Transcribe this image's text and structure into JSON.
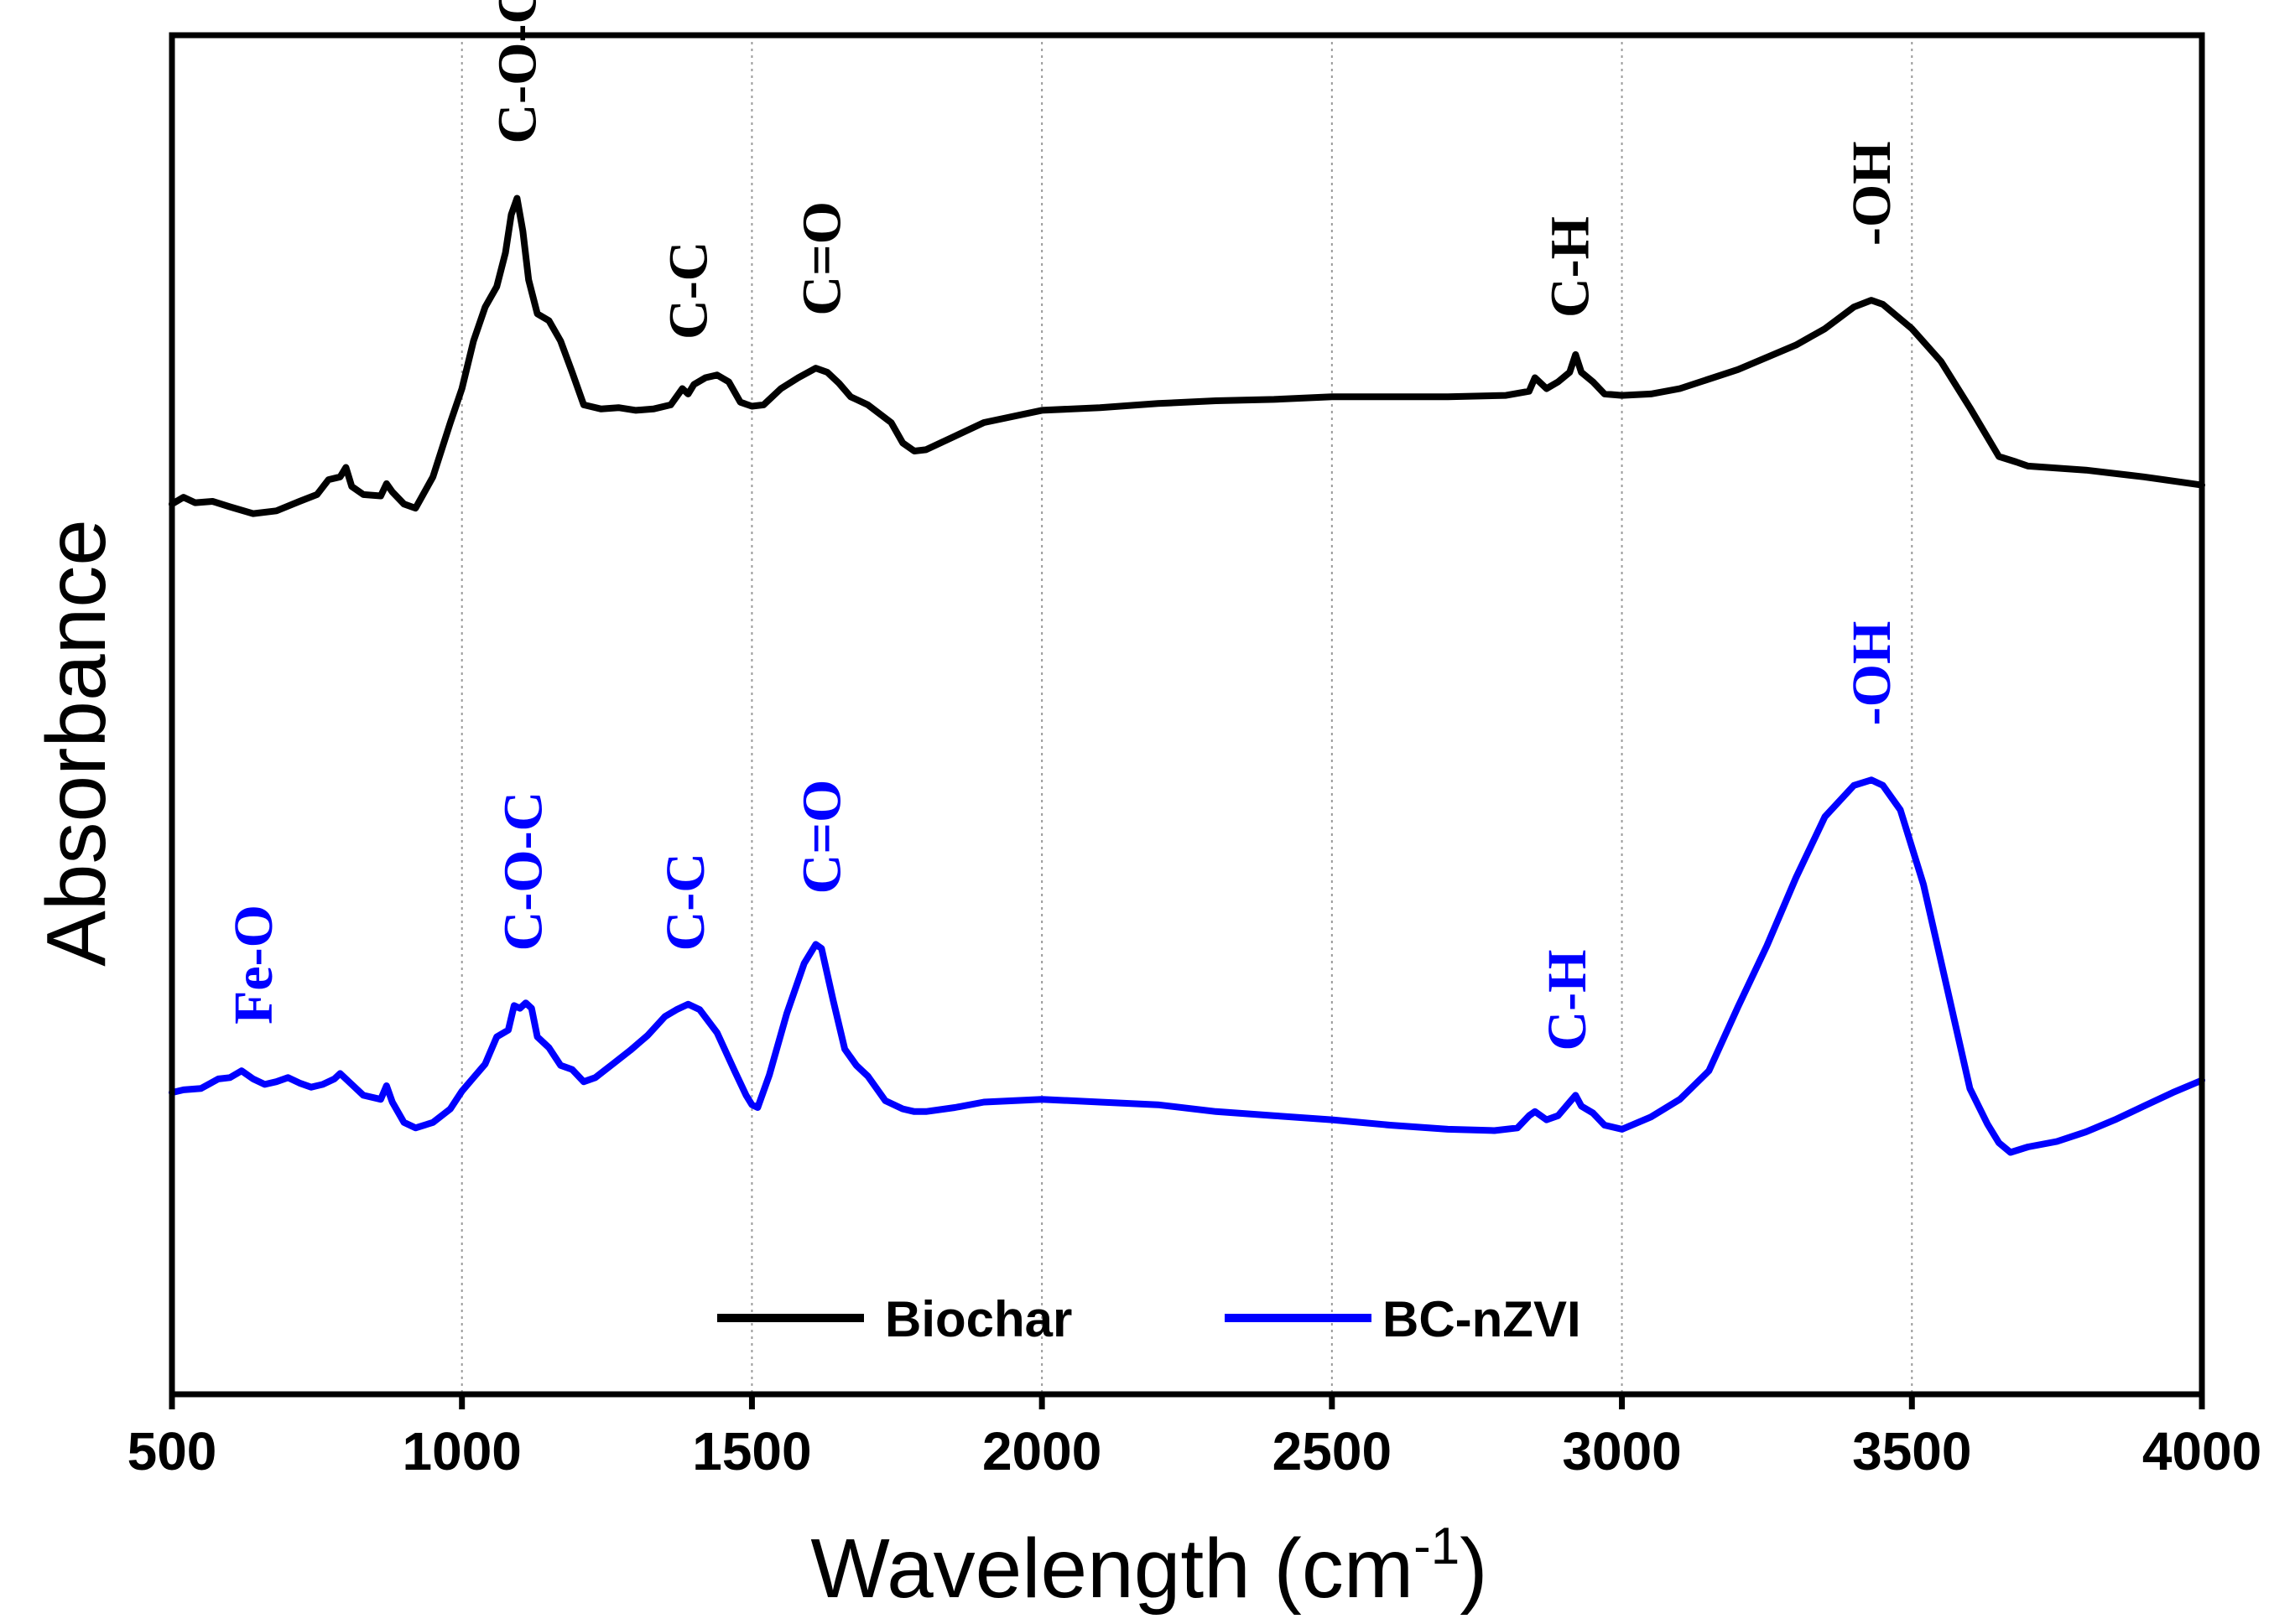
{
  "chart_data": {
    "type": "line",
    "title": "",
    "xlabel": "Wavelength (cm",
    "xlabel_sup": "-1",
    "xlabel_close": ")",
    "ylabel": "Absorbance",
    "xlim": [
      500,
      4000
    ],
    "ylim": [
      0,
      100
    ],
    "xticks": [
      "500",
      "1000",
      "1500",
      "2000",
      "2500",
      "3000",
      "3500",
      "4000"
    ],
    "grid": "vertical dotted at major x ticks",
    "legend": {
      "placement": "bottom-center",
      "entries": [
        "Biochar",
        "BC-nZVI"
      ]
    },
    "series": [
      {
        "name": "Biochar",
        "color": "#000000",
        "x": [
          500,
          520,
          540,
          570,
          600,
          640,
          680,
          720,
          750,
          770,
          790,
          800,
          810,
          830,
          860,
          870,
          880,
          900,
          920,
          950,
          980,
          1000,
          1020,
          1040,
          1060,
          1075,
          1085,
          1095,
          1105,
          1115,
          1130,
          1150,
          1170,
          1190,
          1210,
          1240,
          1270,
          1300,
          1330,
          1360,
          1380,
          1390,
          1400,
          1420,
          1440,
          1460,
          1480,
          1500,
          1520,
          1550,
          1580,
          1610,
          1630,
          1650,
          1670,
          1700,
          1740,
          1760,
          1780,
          1800,
          1850,
          1900,
          2000,
          2100,
          2200,
          2300,
          2400,
          2500,
          2600,
          2700,
          2800,
          2840,
          2850,
          2870,
          2890,
          2910,
          2920,
          2930,
          2950,
          2970,
          3000,
          3050,
          3100,
          3200,
          3300,
          3350,
          3400,
          3430,
          3450,
          3500,
          3550,
          3600,
          3650,
          3680,
          3700,
          3800,
          3900,
          4000
        ],
        "y": [
          65.5,
          66,
          65.6,
          65.7,
          65.3,
          64.8,
          65,
          65.7,
          66.2,
          67.3,
          67.5,
          68.2,
          66.8,
          66.2,
          66.1,
          67,
          66.4,
          65.5,
          65.2,
          67.5,
          71.5,
          74,
          77.5,
          80,
          81.5,
          84,
          86.8,
          88,
          85.6,
          82,
          79.5,
          79,
          77.5,
          75.2,
          72.8,
          72.5,
          72.6,
          72.4,
          72.5,
          72.8,
          74,
          73.6,
          74.3,
          74.8,
          75,
          74.5,
          73,
          72.7,
          72.8,
          74,
          74.8,
          75.5,
          75.2,
          74.4,
          73.4,
          72.8,
          71.5,
          70,
          69.4,
          69.5,
          70.5,
          71.5,
          72.4,
          72.6,
          72.9,
          73.1,
          73.2,
          73.4,
          73.4,
          73.4,
          73.5,
          73.8,
          74.8,
          74,
          74.5,
          75.2,
          76.5,
          75.2,
          74.5,
          73.6,
          73.5,
          73.6,
          74,
          75.4,
          77.2,
          78.4,
          80,
          80.5,
          80.2,
          78.4,
          76,
          72.6,
          69,
          68.6,
          68.3,
          68,
          67.5,
          66.9
        ]
      },
      {
        "name": "BC-nZVI",
        "color": "#0000ff",
        "x": [
          500,
          520,
          550,
          580,
          600,
          620,
          640,
          660,
          680,
          700,
          720,
          740,
          760,
          780,
          790,
          800,
          810,
          830,
          860,
          870,
          880,
          900,
          920,
          950,
          980,
          1000,
          1020,
          1040,
          1060,
          1080,
          1090,
          1100,
          1110,
          1120,
          1130,
          1150,
          1170,
          1190,
          1210,
          1230,
          1260,
          1290,
          1320,
          1350,
          1370,
          1390,
          1410,
          1440,
          1470,
          1490,
          1500,
          1510,
          1530,
          1560,
          1590,
          1610,
          1620,
          1640,
          1660,
          1680,
          1700,
          1730,
          1760,
          1780,
          1800,
          1850,
          1900,
          2000,
          2100,
          2200,
          2300,
          2400,
          2500,
          2600,
          2700,
          2780,
          2820,
          2840,
          2850,
          2870,
          2890,
          2910,
          2920,
          2930,
          2950,
          2970,
          3000,
          3050,
          3100,
          3150,
          3200,
          3250,
          3300,
          3350,
          3400,
          3430,
          3450,
          3480,
          3520,
          3560,
          3600,
          3630,
          3650,
          3670,
          3700,
          3750,
          3800,
          3850,
          3900,
          3950,
          4000
        ],
        "y": [
          22.2,
          22.4,
          22.5,
          23.2,
          23.3,
          23.8,
          23.2,
          22.8,
          23,
          23.3,
          22.9,
          22.6,
          22.8,
          23.2,
          23.6,
          23.2,
          22.8,
          22,
          21.7,
          22.7,
          21.5,
          20,
          19.6,
          20,
          21,
          22.3,
          23.3,
          24.3,
          26.3,
          26.8,
          28.6,
          28.4,
          28.8,
          28.4,
          26.3,
          25.5,
          24.2,
          23.9,
          23,
          23.3,
          24.3,
          25.3,
          26.4,
          27.8,
          28.3,
          28.7,
          28.3,
          26.6,
          23.8,
          22,
          21.3,
          21.1,
          23.5,
          28,
          31.7,
          33.1,
          32.8,
          29,
          25.4,
          24.2,
          23.4,
          21.6,
          21,
          20.8,
          20.8,
          21.1,
          21.5,
          21.7,
          21.5,
          21.3,
          20.8,
          20.5,
          20.2,
          19.8,
          19.5,
          19.4,
          19.6,
          20.5,
          20.8,
          20.2,
          20.5,
          21.5,
          22,
          21.2,
          20.7,
          19.8,
          19.5,
          20.4,
          21.7,
          23.8,
          28.5,
          33,
          38,
          42.5,
          44.8,
          45.2,
          44.8,
          43,
          37.5,
          30,
          22.5,
          19.9,
          18.5,
          17.8,
          18.2,
          18.6,
          19.3,
          20.2,
          21.2,
          22.2,
          23.1
        ]
      }
    ],
    "annotations": [
      {
        "text": "C-O-C",
        "x": 1095,
        "series": "Biochar"
      },
      {
        "text": "C-C",
        "x": 1390,
        "series": "Biochar"
      },
      {
        "text": "C=O",
        "x": 1620,
        "series": "Biochar"
      },
      {
        "text": "C-H",
        "x": 2910,
        "series": "Biochar"
      },
      {
        "text": "-OH",
        "x": 3430,
        "series": "Biochar"
      },
      {
        "text": "Fe-O",
        "x": 640,
        "series": "BC-nZVI"
      },
      {
        "text": "C-O-C",
        "x": 1105,
        "series": "BC-nZVI"
      },
      {
        "text": "C-C",
        "x": 1385,
        "series": "BC-nZVI"
      },
      {
        "text": "C=O",
        "x": 1620,
        "series": "BC-nZVI"
      },
      {
        "text": "C-H",
        "x": 2905,
        "series": "BC-nZVI"
      },
      {
        "text": "-OH",
        "x": 3430,
        "series": "BC-nZVI"
      }
    ]
  }
}
